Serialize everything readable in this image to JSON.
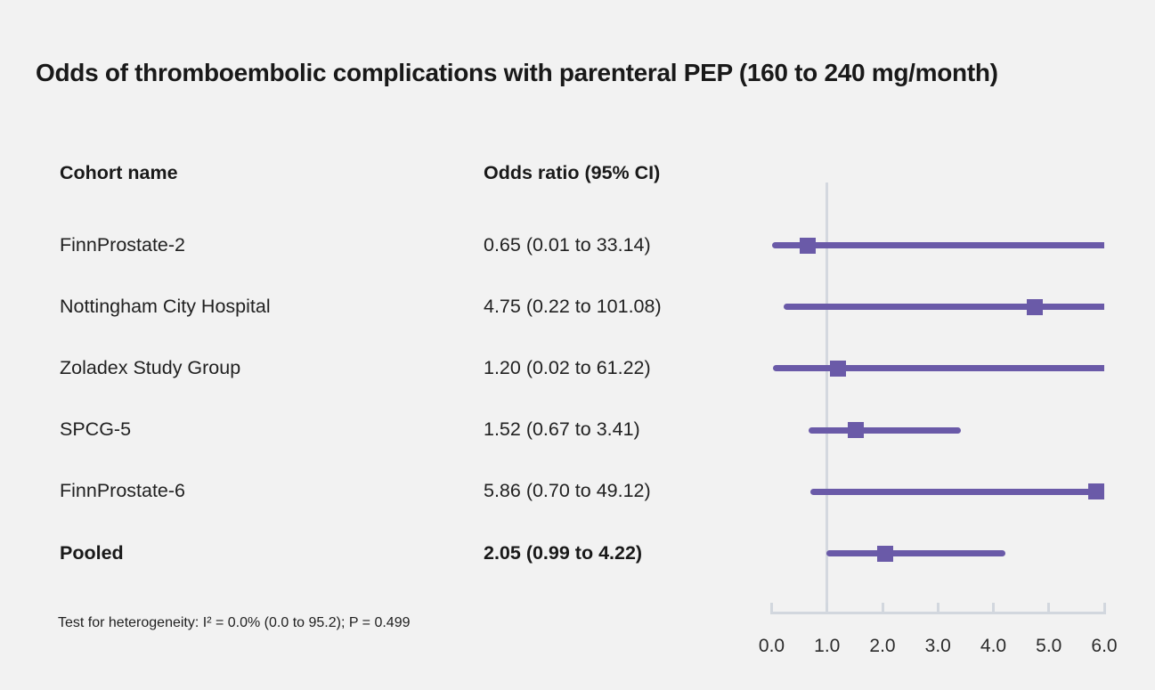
{
  "title": "Odds of thromboembolic complications with parenteral PEP (160 to 240 mg/month)",
  "columns": {
    "cohort": "Cohort name",
    "odds_ratio": "Odds ratio (95% CI)"
  },
  "footnote": "Test for heterogeneity: I² = 0.0% (0.0 to 95.2); P = 0.499",
  "colors": {
    "background": "#f2f2f2",
    "bar": "#6a5aa8",
    "axis": "#d2d7de",
    "text": "#191919"
  },
  "chart_data": {
    "type": "forest",
    "title": "Odds of thromboembolic complications with parenteral PEP (160 to 240 mg/month)",
    "xlim": [
      0,
      6
    ],
    "x_ticks": [
      "0.0",
      "1.0",
      "2.0",
      "3.0",
      "4.0",
      "5.0",
      "6.0"
    ],
    "reference_line": 1.0,
    "grid": false,
    "studies": [
      {
        "name": "FinnProstate-2",
        "label": "0.65 (0.01 to 33.14)",
        "or": 0.65,
        "ci_low": 0.01,
        "ci_high": 33.14,
        "bold": false
      },
      {
        "name": "Nottingham City Hospital",
        "label": "4.75 (0.22 to 101.08)",
        "or": 4.75,
        "ci_low": 0.22,
        "ci_high": 101.08,
        "bold": false
      },
      {
        "name": "Zoladex Study Group",
        "label": "1.20 (0.02 to 61.22)",
        "or": 1.2,
        "ci_low": 0.02,
        "ci_high": 61.22,
        "bold": false
      },
      {
        "name": "SPCG-5",
        "label": "1.52 (0.67 to 3.41)",
        "or": 1.52,
        "ci_low": 0.67,
        "ci_high": 3.41,
        "bold": false
      },
      {
        "name": "FinnProstate-6",
        "label": "5.86 (0.70 to 49.12)",
        "or": 5.86,
        "ci_low": 0.7,
        "ci_high": 49.12,
        "bold": false
      },
      {
        "name": "Pooled",
        "label": "2.05 (0.99 to 4.22)",
        "or": 2.05,
        "ci_low": 0.99,
        "ci_high": 4.22,
        "bold": true
      }
    ]
  }
}
